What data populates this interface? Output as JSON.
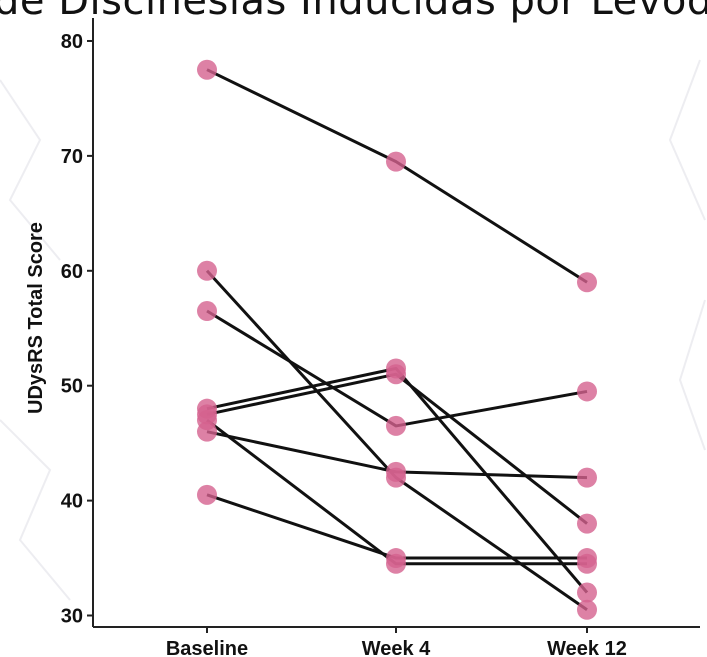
{
  "page_title": "de Discinesias Inducidas por Levod",
  "colors": {
    "point": "#d4618f",
    "line": "#111111",
    "axis": "#222222"
  },
  "chart_data": {
    "type": "line",
    "categories": [
      "Baseline",
      "Week 4",
      "Week 12"
    ],
    "ylabel": "UDysRS Total Score",
    "xlabel": "",
    "ylim": [
      29,
      82
    ],
    "yticks": [
      30,
      40,
      50,
      60,
      70,
      80
    ],
    "grid": false,
    "series": [
      {
        "values": [
          77.5,
          69.5,
          59
        ]
      },
      {
        "values": [
          60,
          42,
          30.5
        ]
      },
      {
        "values": [
          56.5,
          46.5,
          49.5
        ]
      },
      {
        "values": [
          48,
          51.5,
          32
        ]
      },
      {
        "values": [
          47.5,
          51,
          38
        ]
      },
      {
        "values": [
          47,
          34.5,
          34.5
        ]
      },
      {
        "values": [
          46,
          42.5,
          42
        ]
      },
      {
        "values": [
          40.5,
          35,
          35
        ]
      }
    ]
  }
}
